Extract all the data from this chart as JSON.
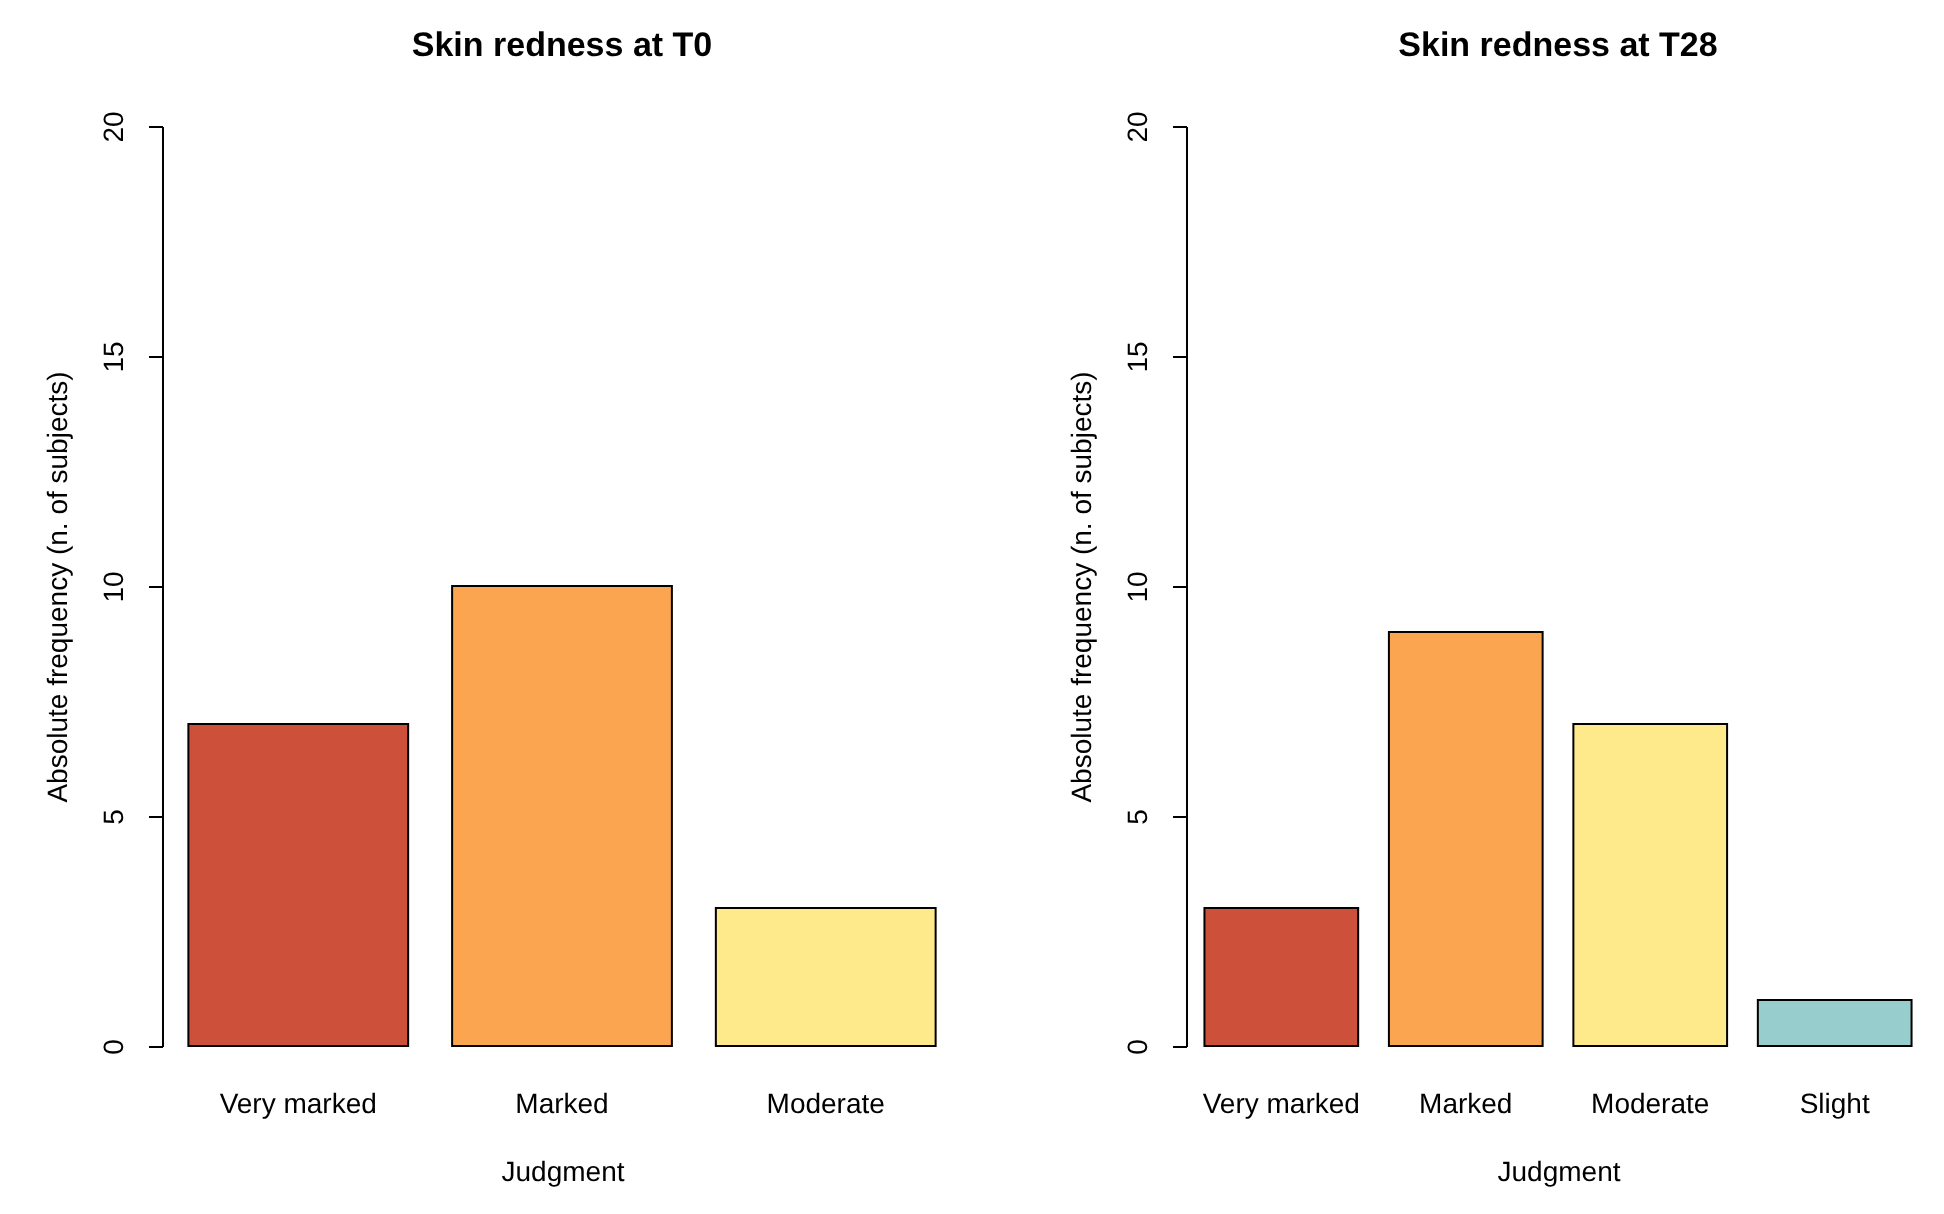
{
  "chart_data": [
    {
      "type": "bar",
      "title": "Skin redness at T0",
      "xlabel": "Judgment",
      "ylabel": "Absolute frequency (n. of subjects)",
      "categories": [
        "Very marked",
        "Marked",
        "Moderate"
      ],
      "values": [
        7,
        10,
        3
      ],
      "colors": [
        "#cd503b",
        "#fca550",
        "#feea8a"
      ],
      "ylim": [
        0,
        20
      ],
      "yticks": [
        0,
        5,
        10,
        15,
        20
      ]
    },
    {
      "type": "bar",
      "title": "Skin redness at T28",
      "xlabel": "Judgment",
      "ylabel": "Absolute frequency (n. of subjects)",
      "categories": [
        "Very marked",
        "Marked",
        "Moderate",
        "Slight"
      ],
      "values": [
        3,
        9,
        7,
        1
      ],
      "colors": [
        "#cd503b",
        "#fca550",
        "#feea8a",
        "#97cecd"
      ],
      "ylim": [
        0,
        20
      ],
      "yticks": [
        0,
        5,
        10,
        15,
        20
      ]
    }
  ]
}
